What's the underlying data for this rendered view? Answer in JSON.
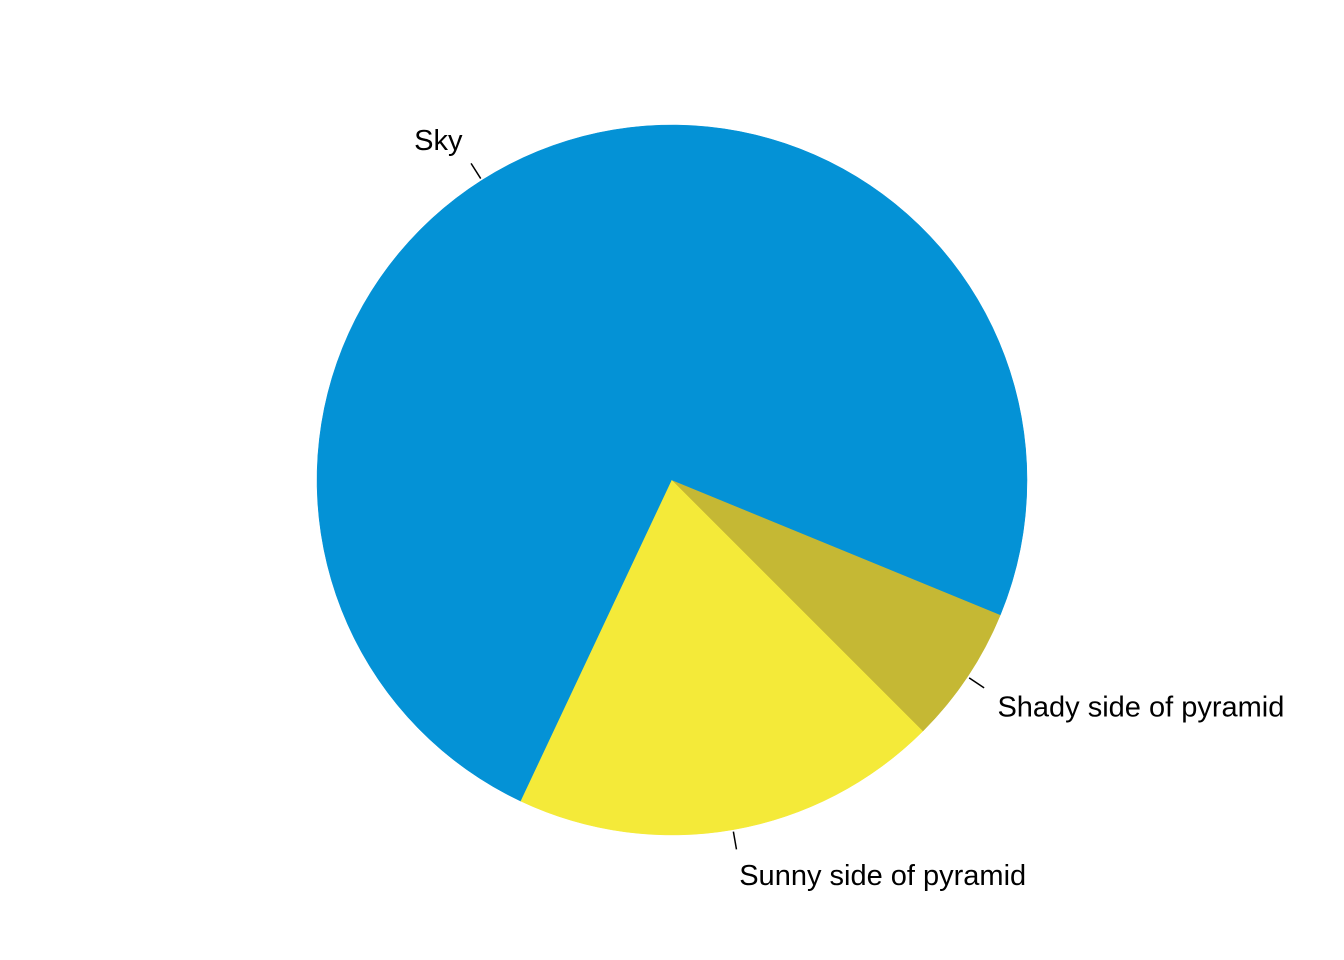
{
  "chart_data": {
    "type": "pie",
    "direction": "counterclockwise",
    "start_angle_deg": 0,
    "slices": [
      {
        "label": "Sky",
        "value": 0.68,
        "color": "#0492D6"
      },
      {
        "label": "Sunny side of pyramid",
        "value": 0.195,
        "color": "#F4EA39"
      },
      {
        "label": "Shady side of pyramid",
        "value": 0.063,
        "color": "#C5B834"
      },
      {
        "label": "",
        "value": 0.062,
        "color": "#0492D6"
      }
    ]
  }
}
